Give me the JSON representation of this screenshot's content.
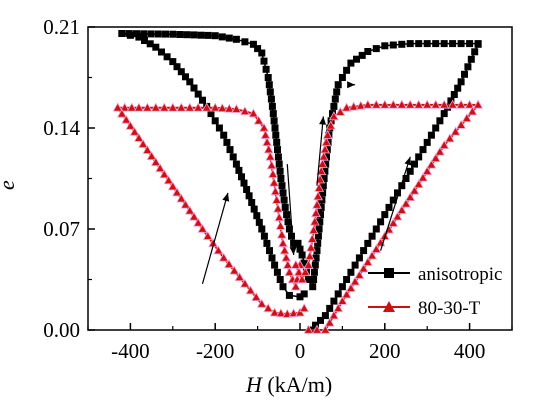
{
  "chart_data": {
    "type": "scatter",
    "xlabel_var": "H",
    "xlabel_unit": " (kA/m)",
    "ylabel": "e",
    "xlim": [
      -500,
      500
    ],
    "ylim": [
      0,
      0.21
    ],
    "xticks": [
      -400,
      -200,
      0,
      200,
      400
    ],
    "yticks": [
      0.0,
      0.07,
      0.14,
      0.21
    ],
    "ytick_labels": [
      "0.00",
      "0.07",
      "0.14",
      "0.21"
    ],
    "grid": false,
    "legend_position": "bottom-right",
    "colors": {
      "anisotropic": "#000000",
      "sample": "#cc1111"
    },
    "series": [
      {
        "name": "anisotropic",
        "marker": "square",
        "color": "#000000",
        "decreasing": [
          [
            -420,
            0.2055
          ],
          [
            -380,
            0.203
          ],
          [
            -340,
            0.196
          ],
          [
            -300,
            0.186
          ],
          [
            -260,
            0.172
          ],
          [
            -220,
            0.155
          ],
          [
            -180,
            0.135
          ],
          [
            -150,
            0.115
          ],
          [
            -120,
            0.093
          ],
          [
            -90,
            0.07
          ],
          [
            -60,
            0.045
          ],
          [
            -40,
            0.03
          ],
          [
            -25,
            0.024
          ],
          [
            0,
            0.023
          ],
          [
            10,
            0.025
          ]
        ],
        "increasing": [
          [
            -5,
            0.06
          ],
          [
            5,
            0.052
          ],
          [
            20,
            0.035
          ],
          [
            30,
            0.03
          ],
          [
            40,
            0.055
          ],
          [
            55,
            0.1
          ],
          [
            70,
            0.14
          ],
          [
            90,
            0.17
          ],
          [
            120,
            0.185
          ],
          [
            160,
            0.193
          ],
          [
            200,
            0.197
          ],
          [
            260,
            0.1985
          ],
          [
            320,
            0.1985
          ],
          [
            380,
            0.1985
          ],
          [
            420,
            0.1985
          ]
        ],
        "lower_right": [
          [
            25,
            0.0
          ],
          [
            60,
            0.01
          ],
          [
            100,
            0.03
          ],
          [
            140,
            0.05
          ],
          [
            180,
            0.07
          ],
          [
            220,
            0.09
          ],
          [
            260,
            0.11
          ],
          [
            300,
            0.13
          ],
          [
            340,
            0.15
          ],
          [
            380,
            0.172
          ],
          [
            420,
            0.198
          ]
        ],
        "upper_left_return": [
          [
            -420,
            0.2055
          ],
          [
            -300,
            0.205
          ],
          [
            -200,
            0.204
          ],
          [
            -150,
            0.2015
          ],
          [
            -110,
            0.198
          ],
          [
            -90,
            0.192
          ],
          [
            -75,
            0.175
          ],
          [
            -65,
            0.155
          ],
          [
            -55,
            0.13
          ],
          [
            -45,
            0.105
          ],
          [
            -35,
            0.085
          ],
          [
            -25,
            0.07
          ],
          [
            -15,
            0.06
          ],
          [
            -5,
            0.06
          ]
        ]
      },
      {
        "name": "80-30-T",
        "marker": "triangle",
        "color": "#cc1111",
        "decreasing": [
          [
            -430,
            0.154
          ],
          [
            -380,
            0.154
          ],
          [
            -320,
            0.154
          ],
          [
            -260,
            0.154
          ],
          [
            -200,
            0.154
          ],
          [
            -150,
            0.153
          ],
          [
            -110,
            0.15
          ],
          [
            -85,
            0.14
          ],
          [
            -70,
            0.12
          ],
          [
            -55,
            0.09
          ],
          [
            -40,
            0.06
          ],
          [
            -25,
            0.04
          ],
          [
            -10,
            0.03
          ],
          [
            0,
            0.045
          ]
        ],
        "lower_left": [
          [
            -430,
            0.154
          ],
          [
            -380,
            0.133
          ],
          [
            -330,
            0.112
          ],
          [
            -280,
            0.091
          ],
          [
            -230,
            0.07
          ],
          [
            -180,
            0.05
          ],
          [
            -130,
            0.032
          ],
          [
            -90,
            0.018
          ],
          [
            -60,
            0.012
          ],
          [
            -30,
            0.011
          ],
          [
            0,
            0.012
          ],
          [
            10,
            0.015
          ]
        ],
        "increasing": [
          [
            -10,
            0.045
          ],
          [
            5,
            0.035
          ],
          [
            20,
            0.045
          ],
          [
            35,
            0.075
          ],
          [
            50,
            0.11
          ],
          [
            65,
            0.135
          ],
          [
            80,
            0.148
          ],
          [
            110,
            0.154
          ],
          [
            160,
            0.156
          ],
          [
            220,
            0.156
          ],
          [
            300,
            0.156
          ],
          [
            360,
            0.156
          ],
          [
            420,
            0.156
          ]
        ],
        "lower_right": [
          [
            20,
            0.0
          ],
          [
            60,
            0.0
          ],
          [
            100,
            0.02
          ],
          [
            140,
            0.038
          ],
          [
            180,
            0.056
          ],
          [
            220,
            0.074
          ],
          [
            260,
            0.092
          ],
          [
            300,
            0.11
          ],
          [
            340,
            0.128
          ],
          [
            380,
            0.142
          ],
          [
            420,
            0.156
          ]
        ]
      }
    ],
    "arrows": [
      {
        "from": [
          -230,
          0.032
        ],
        "to": [
          -170,
          0.095
        ]
      },
      {
        "from": [
          -30,
          0.115
        ],
        "to": [
          -15,
          0.052
        ]
      },
      {
        "from": [
          40,
          0.1
        ],
        "to": [
          55,
          0.148
        ]
      },
      {
        "from": [
          120,
          0.17
        ],
        "to": [
          130,
          0.17
        ]
      },
      {
        "from": [
          190,
          0.055
        ],
        "to": [
          260,
          0.12
        ]
      }
    ]
  }
}
